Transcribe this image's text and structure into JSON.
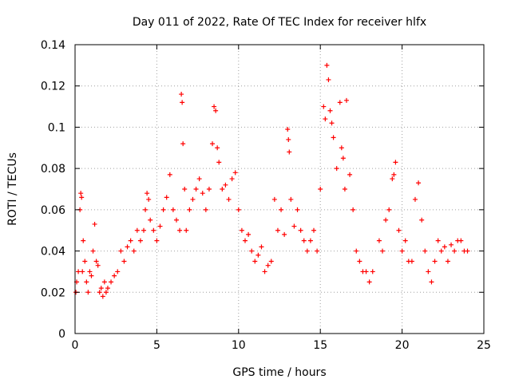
{
  "chart_data": {
    "type": "scatter",
    "title": "Day 011 of 2022, Rate Of TEC Index for receiver hlfx",
    "xlabel": "GPS time / hours",
    "ylabel": "ROTI / TECUs",
    "xlim": [
      0,
      25
    ],
    "ylim": [
      0,
      0.14
    ],
    "xticks": [
      0,
      5,
      10,
      15,
      20,
      25
    ],
    "xtick_labels": [
      "0",
      "5",
      "10",
      "15",
      "20",
      "25"
    ],
    "yticks": [
      0,
      0.02,
      0.04,
      0.06,
      0.08,
      0.1,
      0.12,
      0.14
    ],
    "ytick_labels": [
      "0",
      "0.02",
      "0.04",
      "0.06",
      "0.08",
      "0.1",
      "0.12",
      "0.14"
    ],
    "grid": true,
    "marker": "plus",
    "series": [
      {
        "name": "",
        "color": "#ff0000",
        "x": [
          0.05,
          0.1,
          0.2,
          0.3,
          0.35,
          0.4,
          0.45,
          0.5,
          0.6,
          0.7,
          0.8,
          0.9,
          1.0,
          1.1,
          1.2,
          1.3,
          1.4,
          1.5,
          1.6,
          1.7,
          1.8,
          1.9,
          2.0,
          2.2,
          2.4,
          2.6,
          2.8,
          3.0,
          3.2,
          3.4,
          3.6,
          3.8,
          4.0,
          4.2,
          4.3,
          4.4,
          4.5,
          4.6,
          4.8,
          5.0,
          5.2,
          5.4,
          5.6,
          5.8,
          6.0,
          6.2,
          6.4,
          6.5,
          6.55,
          6.6,
          6.7,
          6.8,
          7.0,
          7.2,
          7.4,
          7.6,
          7.8,
          8.0,
          8.2,
          8.4,
          8.5,
          8.6,
          8.7,
          8.8,
          9.0,
          9.2,
          9.4,
          9.6,
          9.8,
          10.0,
          10.2,
          10.4,
          10.6,
          10.8,
          11.0,
          11.2,
          11.4,
          11.6,
          11.8,
          12.0,
          12.2,
          12.4,
          12.6,
          12.8,
          13.0,
          13.05,
          13.1,
          13.2,
          13.4,
          13.6,
          13.8,
          14.0,
          14.2,
          14.4,
          14.6,
          14.8,
          15.0,
          15.2,
          15.3,
          15.4,
          15.5,
          15.6,
          15.7,
          15.8,
          16.0,
          16.2,
          16.3,
          16.4,
          16.5,
          16.6,
          16.8,
          17.0,
          17.2,
          17.4,
          17.6,
          17.8,
          18.0,
          18.2,
          18.6,
          18.8,
          19.0,
          19.2,
          19.4,
          19.5,
          19.6,
          19.8,
          20.0,
          20.2,
          20.4,
          20.6,
          20.8,
          21.0,
          21.2,
          21.4,
          21.6,
          21.8,
          22.0,
          22.2,
          22.4,
          22.6,
          22.8,
          23.0,
          23.2,
          23.4,
          23.6,
          23.8,
          24.0
        ],
        "y": [
          0.02,
          0.025,
          0.03,
          0.06,
          0.068,
          0.066,
          0.03,
          0.045,
          0.035,
          0.025,
          0.02,
          0.03,
          0.028,
          0.04,
          0.053,
          0.035,
          0.033,
          0.02,
          0.022,
          0.018,
          0.025,
          0.02,
          0.022,
          0.025,
          0.028,
          0.03,
          0.04,
          0.035,
          0.042,
          0.045,
          0.04,
          0.05,
          0.045,
          0.05,
          0.06,
          0.068,
          0.065,
          0.055,
          0.05,
          0.045,
          0.052,
          0.06,
          0.066,
          0.077,
          0.06,
          0.055,
          0.05,
          0.116,
          0.112,
          0.092,
          0.07,
          0.05,
          0.06,
          0.065,
          0.07,
          0.075,
          0.068,
          0.06,
          0.07,
          0.092,
          0.11,
          0.108,
          0.09,
          0.083,
          0.07,
          0.072,
          0.065,
          0.075,
          0.078,
          0.06,
          0.05,
          0.045,
          0.048,
          0.04,
          0.035,
          0.038,
          0.042,
          0.03,
          0.033,
          0.035,
          0.065,
          0.05,
          0.06,
          0.048,
          0.099,
          0.094,
          0.088,
          0.065,
          0.052,
          0.06,
          0.05,
          0.045,
          0.04,
          0.045,
          0.05,
          0.04,
          0.07,
          0.11,
          0.104,
          0.13,
          0.123,
          0.108,
          0.102,
          0.095,
          0.08,
          0.112,
          0.09,
          0.085,
          0.07,
          0.113,
          0.077,
          0.06,
          0.04,
          0.035,
          0.03,
          0.03,
          0.025,
          0.03,
          0.045,
          0.04,
          0.055,
          0.06,
          0.075,
          0.077,
          0.083,
          0.05,
          0.04,
          0.045,
          0.035,
          0.035,
          0.065,
          0.073,
          0.055,
          0.04,
          0.03,
          0.025,
          0.035,
          0.045,
          0.04,
          0.042,
          0.035,
          0.043,
          0.04,
          0.045,
          0.045,
          0.04,
          0.04
        ]
      }
    ]
  }
}
